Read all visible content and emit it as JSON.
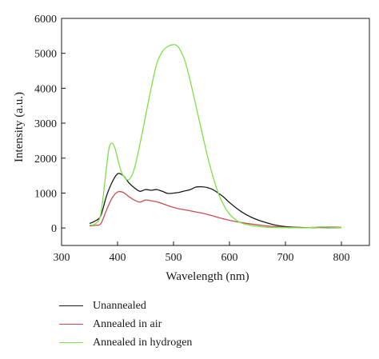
{
  "chart_data": {
    "type": "line",
    "xlabel": "Wavelength (nm)",
    "ylabel": "Intensity (a.u.)",
    "xlim": [
      300,
      850
    ],
    "ylim": [
      -500,
      6000
    ],
    "xticks": [
      300,
      400,
      500,
      600,
      700,
      800
    ],
    "yticks": [
      0,
      1000,
      2000,
      3000,
      4000,
      5000,
      6000
    ],
    "grid": false,
    "legend_position": "below-left",
    "series": [
      {
        "name": "Unannealed",
        "color": "#1a1a1a",
        "x": [
          350,
          360,
          370,
          380,
          390,
          400,
          410,
          420,
          430,
          440,
          450,
          460,
          470,
          480,
          490,
          500,
          510,
          520,
          530,
          540,
          550,
          560,
          570,
          580,
          590,
          600,
          620,
          640,
          660,
          680,
          700,
          720,
          740,
          760,
          780,
          800
        ],
        "y": [
          130,
          200,
          350,
          900,
          1300,
          1550,
          1500,
          1300,
          1150,
          1050,
          1100,
          1080,
          1100,
          1050,
          990,
          1000,
          1020,
          1060,
          1100,
          1170,
          1180,
          1160,
          1100,
          1000,
          880,
          730,
          480,
          300,
          180,
          90,
          40,
          20,
          10,
          15,
          10,
          10
        ]
      },
      {
        "name": "Annealed in air",
        "color": "#c8504f",
        "x": [
          350,
          360,
          370,
          380,
          390,
          400,
          410,
          420,
          430,
          440,
          450,
          460,
          470,
          480,
          490,
          500,
          510,
          520,
          530,
          540,
          550,
          560,
          570,
          580,
          600,
          620,
          640,
          660,
          680,
          700,
          720,
          740,
          760,
          780,
          800
        ],
        "y": [
          60,
          80,
          120,
          500,
          850,
          1030,
          1020,
          900,
          800,
          740,
          800,
          780,
          750,
          700,
          640,
          590,
          550,
          520,
          490,
          460,
          430,
          390,
          350,
          300,
          220,
          160,
          110,
          70,
          40,
          20,
          10,
          10,
          20,
          30,
          20
        ]
      },
      {
        "name": "Annealed in hydrogen",
        "color": "#7ee04a",
        "x": [
          350,
          360,
          370,
          380,
          385,
          390,
          395,
          400,
          405,
          410,
          420,
          430,
          440,
          450,
          460,
          470,
          480,
          490,
          500,
          505,
          510,
          520,
          530,
          540,
          550,
          560,
          570,
          580,
          590,
          600,
          610,
          620,
          640,
          660,
          680,
          700,
          720,
          740,
          760,
          780,
          800
        ],
        "y": [
          80,
          120,
          400,
          1700,
          2300,
          2430,
          2300,
          2000,
          1700,
          1500,
          1380,
          1700,
          2400,
          3200,
          4000,
          4700,
          5050,
          5200,
          5250,
          5230,
          5150,
          4800,
          4200,
          3500,
          2800,
          2100,
          1500,
          1000,
          650,
          400,
          250,
          150,
          70,
          30,
          15,
          10,
          5,
          5,
          30,
          20,
          10
        ]
      }
    ]
  }
}
